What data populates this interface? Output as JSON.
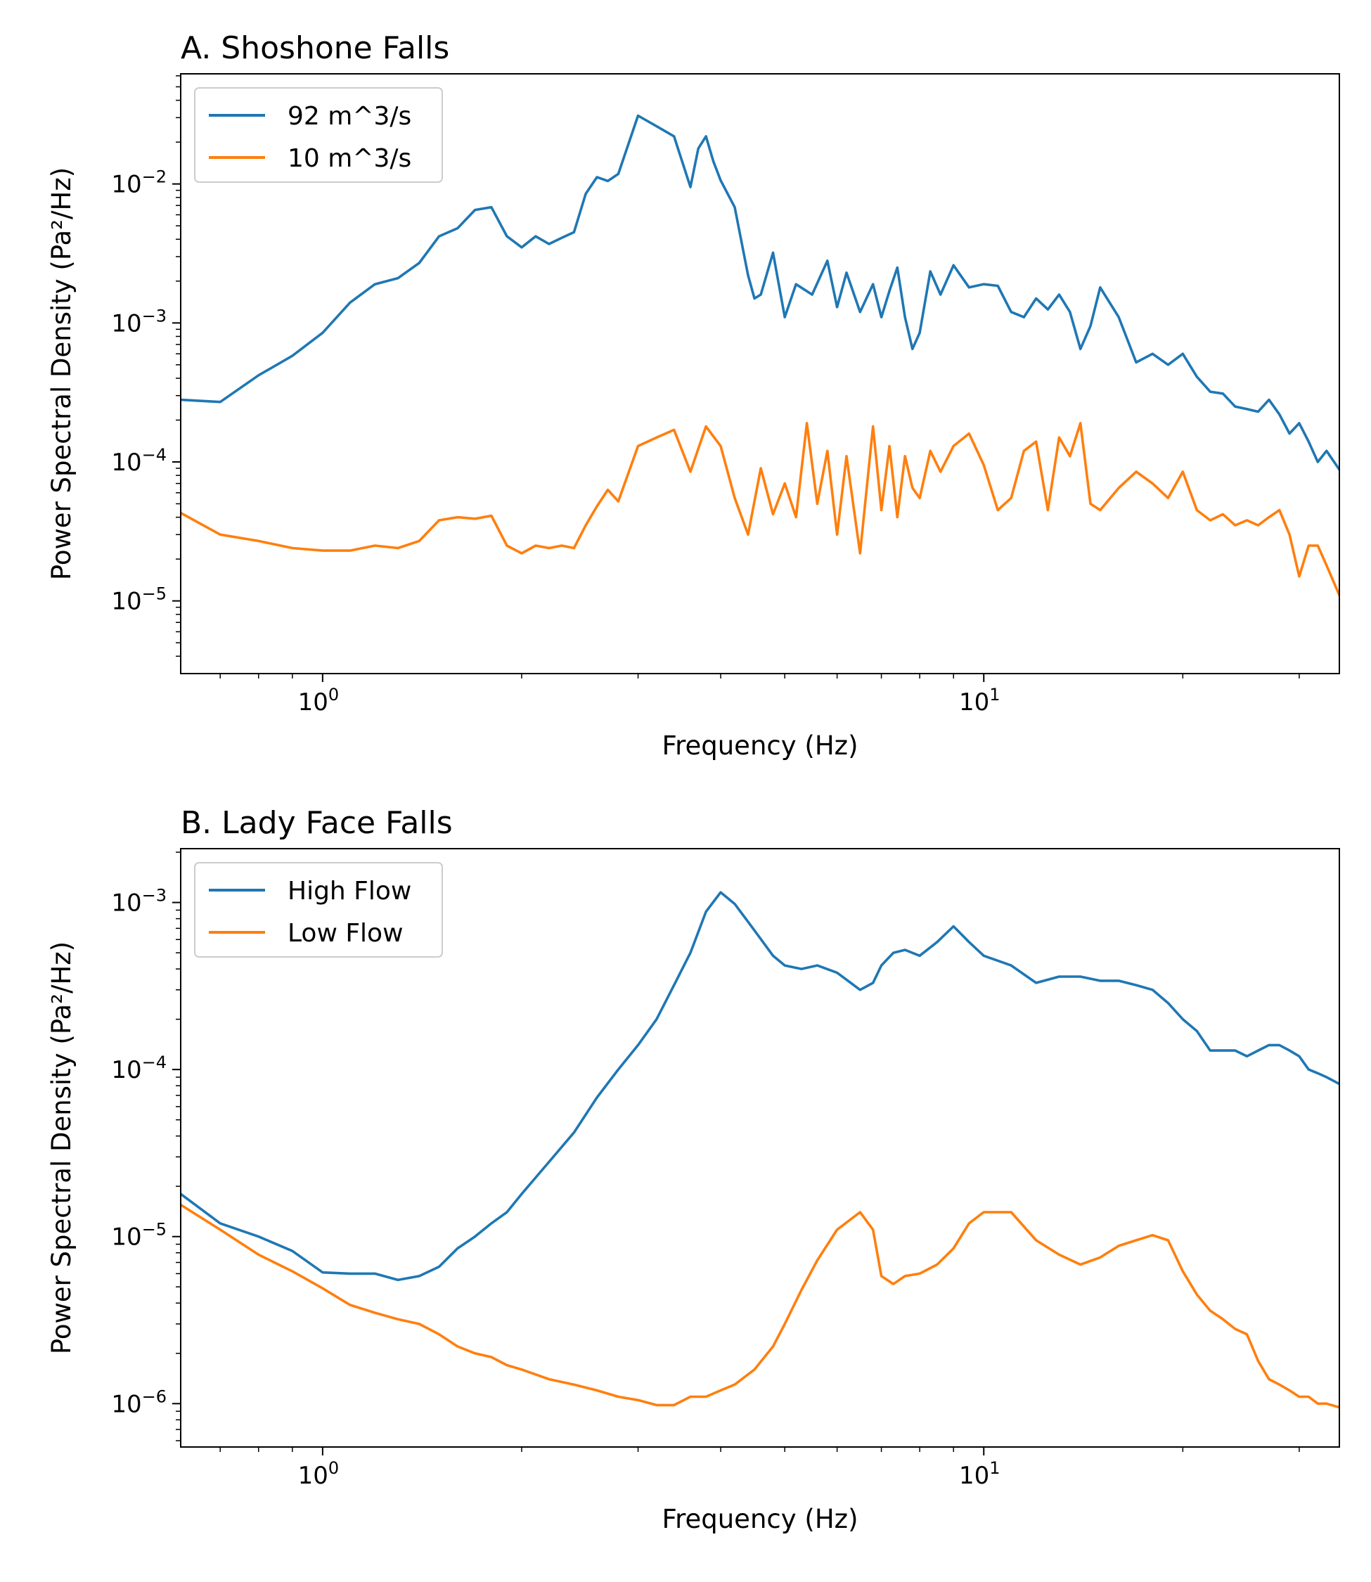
{
  "chart_data": [
    {
      "type": "line",
      "title": "A. Shoshone Falls",
      "xlabel": "Frequency (Hz)",
      "ylabel": "Power Spectral Density (Pa²/Hz)",
      "x_scale": "log",
      "y_scale": "log",
      "xlim": [
        0.61,
        34.5
      ],
      "ylim": [
        3e-06,
        0.062
      ],
      "x_ticks": [
        {
          "value": 1,
          "label": "10",
          "exp": "0"
        },
        {
          "value": 10,
          "label": "10",
          "exp": "1"
        }
      ],
      "y_ticks": [
        {
          "value": 0.01,
          "label": "10",
          "exp": "−2"
        },
        {
          "value": 0.001,
          "label": "10",
          "exp": "−3"
        },
        {
          "value": 0.0001,
          "label": "10",
          "exp": "−4"
        },
        {
          "value": 1e-05,
          "label": "10",
          "exp": "−5"
        }
      ],
      "legend_position": "top-left",
      "grid": false,
      "series": [
        {
          "name": "92 m^3/s",
          "color": "#1f77b4",
          "x": [
            0.61,
            0.7,
            0.8,
            0.9,
            1.0,
            1.1,
            1.2,
            1.3,
            1.4,
            1.5,
            1.6,
            1.7,
            1.8,
            1.9,
            2.0,
            2.1,
            2.2,
            2.3,
            2.4,
            2.5,
            2.6,
            2.7,
            2.8,
            3.0,
            3.2,
            3.4,
            3.6,
            3.7,
            3.8,
            3.9,
            4.0,
            4.2,
            4.4,
            4.5,
            4.6,
            4.8,
            5.0,
            5.2,
            5.5,
            5.8,
            6.0,
            6.2,
            6.5,
            6.8,
            7.0,
            7.2,
            7.4,
            7.6,
            7.8,
            8.0,
            8.3,
            8.6,
            9.0,
            9.5,
            10.0,
            10.5,
            11.0,
            11.5,
            12.0,
            12.5,
            13.0,
            13.5,
            14.0,
            14.5,
            15.0,
            16.0,
            17.0,
            18.0,
            19.0,
            20.0,
            21.0,
            22.0,
            23.0,
            24.0,
            25.0,
            26.0,
            27.0,
            28.0,
            29.0,
            30.0,
            31.0,
            32.0,
            33.0,
            34.5
          ],
          "y": [
            0.00028,
            0.00027,
            0.00042,
            0.00058,
            0.00085,
            0.0014,
            0.0019,
            0.0021,
            0.0027,
            0.0042,
            0.0048,
            0.0065,
            0.0068,
            0.0042,
            0.0035,
            0.0042,
            0.0037,
            0.0041,
            0.0045,
            0.0085,
            0.0112,
            0.0105,
            0.0118,
            0.031,
            0.026,
            0.022,
            0.0095,
            0.018,
            0.022,
            0.0145,
            0.0106,
            0.0068,
            0.0022,
            0.0015,
            0.0016,
            0.0032,
            0.0011,
            0.0019,
            0.0016,
            0.0028,
            0.0013,
            0.0023,
            0.0012,
            0.0019,
            0.0011,
            0.0017,
            0.0025,
            0.0011,
            0.00065,
            0.00085,
            0.00235,
            0.0016,
            0.0026,
            0.0018,
            0.0019,
            0.00185,
            0.0012,
            0.0011,
            0.0015,
            0.00125,
            0.0016,
            0.0012,
            0.00065,
            0.00095,
            0.0018,
            0.0011,
            0.00052,
            0.0006,
            0.0005,
            0.0006,
            0.00041,
            0.00032,
            0.00031,
            0.00025,
            0.00024,
            0.00023,
            0.00028,
            0.00022,
            0.00016,
            0.00019,
            0.00014,
            0.0001,
            0.00012,
            8.8e-05
          ]
        },
        {
          "name": "10 m^3/s",
          "color": "#ff7f0e",
          "x": [
            0.61,
            0.7,
            0.8,
            0.9,
            1.0,
            1.1,
            1.2,
            1.3,
            1.4,
            1.5,
            1.6,
            1.7,
            1.8,
            1.9,
            2.0,
            2.1,
            2.2,
            2.3,
            2.4,
            2.5,
            2.6,
            2.7,
            2.8,
            3.0,
            3.2,
            3.4,
            3.6,
            3.8,
            4.0,
            4.2,
            4.4,
            4.6,
            4.8,
            5.0,
            5.2,
            5.4,
            5.6,
            5.8,
            6.0,
            6.2,
            6.5,
            6.8,
            7.0,
            7.2,
            7.4,
            7.6,
            7.8,
            8.0,
            8.3,
            8.6,
            9.0,
            9.5,
            10.0,
            10.5,
            11.0,
            11.5,
            12.0,
            12.5,
            13.0,
            13.5,
            14.0,
            14.5,
            15.0,
            16.0,
            17.0,
            18.0,
            19.0,
            20.0,
            21.0,
            22.0,
            23.0,
            24.0,
            25.0,
            26.0,
            27.0,
            28.0,
            29.0,
            30.0,
            31.0,
            32.0,
            33.0,
            34.5
          ],
          "y": [
            4.3e-05,
            3e-05,
            2.7e-05,
            2.4e-05,
            2.3e-05,
            2.3e-05,
            2.5e-05,
            2.4e-05,
            2.7e-05,
            3.8e-05,
            4e-05,
            3.9e-05,
            4.1e-05,
            2.5e-05,
            2.2e-05,
            2.5e-05,
            2.4e-05,
            2.5e-05,
            2.4e-05,
            3.5e-05,
            4.8e-05,
            6.3e-05,
            5.2e-05,
            0.00013,
            0.00015,
            0.00017,
            8.5e-05,
            0.00018,
            0.00013,
            5.5e-05,
            3e-05,
            9e-05,
            4.2e-05,
            7e-05,
            4e-05,
            0.00019,
            5e-05,
            0.00012,
            3e-05,
            0.00011,
            2.2e-05,
            0.00018,
            4.5e-05,
            0.00013,
            4e-05,
            0.00011,
            6.5e-05,
            5.5e-05,
            0.00012,
            8.5e-05,
            0.00013,
            0.00016,
            9.5e-05,
            4.5e-05,
            5.5e-05,
            0.00012,
            0.00014,
            4.5e-05,
            0.00015,
            0.00011,
            0.00019,
            5e-05,
            4.5e-05,
            6.5e-05,
            8.5e-05,
            7e-05,
            5.5e-05,
            8.5e-05,
            4.5e-05,
            3.8e-05,
            4.2e-05,
            3.5e-05,
            3.8e-05,
            3.5e-05,
            4e-05,
            4.5e-05,
            3e-05,
            1.5e-05,
            2.5e-05,
            2.5e-05,
            1.8e-05,
            1.1e-05
          ]
        }
      ]
    },
    {
      "type": "line",
      "title": "B. Lady Face Falls",
      "xlabel": "Frequency (Hz)",
      "ylabel": "Power Spectral Density (Pa²/Hz)",
      "x_scale": "log",
      "y_scale": "log",
      "xlim": [
        0.61,
        34.5
      ],
      "ylim": [
        5.5e-07,
        0.0021
      ],
      "x_ticks": [
        {
          "value": 1,
          "label": "10",
          "exp": "0"
        },
        {
          "value": 10,
          "label": "10",
          "exp": "1"
        }
      ],
      "y_ticks": [
        {
          "value": 0.001,
          "label": "10",
          "exp": "−3"
        },
        {
          "value": 0.0001,
          "label": "10",
          "exp": "−4"
        },
        {
          "value": 1e-05,
          "label": "10",
          "exp": "−5"
        },
        {
          "value": 1e-06,
          "label": "10",
          "exp": "−6"
        }
      ],
      "legend_position": "top-left",
      "grid": false,
      "series": [
        {
          "name": "High Flow",
          "color": "#1f77b4",
          "x": [
            0.61,
            0.7,
            0.8,
            0.9,
            1.0,
            1.1,
            1.2,
            1.3,
            1.4,
            1.5,
            1.6,
            1.7,
            1.8,
            1.9,
            2.0,
            2.2,
            2.4,
            2.6,
            2.8,
            3.0,
            3.2,
            3.4,
            3.6,
            3.8,
            4.0,
            4.2,
            4.5,
            4.8,
            5.0,
            5.3,
            5.6,
            6.0,
            6.5,
            6.8,
            7.0,
            7.3,
            7.6,
            8.0,
            8.5,
            9.0,
            9.5,
            10.0,
            11.0,
            12.0,
            13.0,
            14.0,
            15.0,
            16.0,
            17.0,
            18.0,
            19.0,
            20.0,
            21.0,
            22.0,
            23.0,
            24.0,
            25.0,
            26.0,
            27.0,
            28.0,
            29.0,
            30.0,
            31.0,
            32.0,
            33.0,
            34.5
          ],
          "y": [
            1.8e-05,
            1.2e-05,
            1e-05,
            8.2e-06,
            6.1e-06,
            6e-06,
            6e-06,
            5.5e-06,
            5.8e-06,
            6.6e-06,
            8.5e-06,
            1e-05,
            1.2e-05,
            1.4e-05,
            1.8e-05,
            2.8e-05,
            4.2e-05,
            6.8e-05,
            0.0001,
            0.00014,
            0.0002,
            0.00032,
            0.0005,
            0.00088,
            0.00115,
            0.00098,
            0.00068,
            0.00048,
            0.00042,
            0.0004,
            0.00042,
            0.00038,
            0.0003,
            0.00033,
            0.00042,
            0.0005,
            0.00052,
            0.00048,
            0.00058,
            0.00072,
            0.00058,
            0.00048,
            0.00042,
            0.00033,
            0.00036,
            0.00036,
            0.00034,
            0.00034,
            0.00032,
            0.0003,
            0.00025,
            0.0002,
            0.00017,
            0.00013,
            0.00013,
            0.00013,
            0.00012,
            0.00013,
            0.00014,
            0.00014,
            0.00013,
            0.00012,
            0.0001,
            9.5e-05,
            9e-05,
            8.2e-05
          ]
        },
        {
          "name": "Low Flow",
          "color": "#ff7f0e",
          "x": [
            0.61,
            0.7,
            0.8,
            0.9,
            1.0,
            1.1,
            1.2,
            1.3,
            1.4,
            1.5,
            1.6,
            1.7,
            1.8,
            1.9,
            2.0,
            2.2,
            2.4,
            2.6,
            2.8,
            3.0,
            3.2,
            3.4,
            3.6,
            3.8,
            4.0,
            4.2,
            4.5,
            4.8,
            5.0,
            5.3,
            5.6,
            6.0,
            6.5,
            6.8,
            7.0,
            7.3,
            7.6,
            8.0,
            8.5,
            9.0,
            9.5,
            10.0,
            11.0,
            12.0,
            13.0,
            14.0,
            15.0,
            16.0,
            17.0,
            18.0,
            19.0,
            20.0,
            21.0,
            22.0,
            23.0,
            24.0,
            25.0,
            26.0,
            27.0,
            28.0,
            29.0,
            30.0,
            31.0,
            32.0,
            33.0,
            34.5
          ],
          "y": [
            1.55e-05,
            1.1e-05,
            7.8e-06,
            6.2e-06,
            4.9e-06,
            3.9e-06,
            3.5e-06,
            3.2e-06,
            3e-06,
            2.6e-06,
            2.2e-06,
            2e-06,
            1.9e-06,
            1.7e-06,
            1.6e-06,
            1.4e-06,
            1.3e-06,
            1.2e-06,
            1.1e-06,
            1.05e-06,
            9.8e-07,
            9.8e-07,
            1.1e-06,
            1.1e-06,
            1.2e-06,
            1.3e-06,
            1.6e-06,
            2.2e-06,
            3e-06,
            4.8e-06,
            7.2e-06,
            1.1e-05,
            1.4e-05,
            1.1e-05,
            5.8e-06,
            5.2e-06,
            5.8e-06,
            6e-06,
            6.8e-06,
            8.5e-06,
            1.2e-05,
            1.4e-05,
            1.4e-05,
            9.5e-06,
            7.8e-06,
            6.8e-06,
            7.5e-06,
            8.8e-06,
            9.5e-06,
            1.02e-05,
            9.5e-06,
            6.2e-06,
            4.5e-06,
            3.6e-06,
            3.2e-06,
            2.8e-06,
            2.6e-06,
            1.8e-06,
            1.4e-06,
            1.3e-06,
            1.2e-06,
            1.1e-06,
            1.1e-06,
            1e-06,
            1e-06,
            9.5e-07
          ]
        }
      ]
    }
  ]
}
